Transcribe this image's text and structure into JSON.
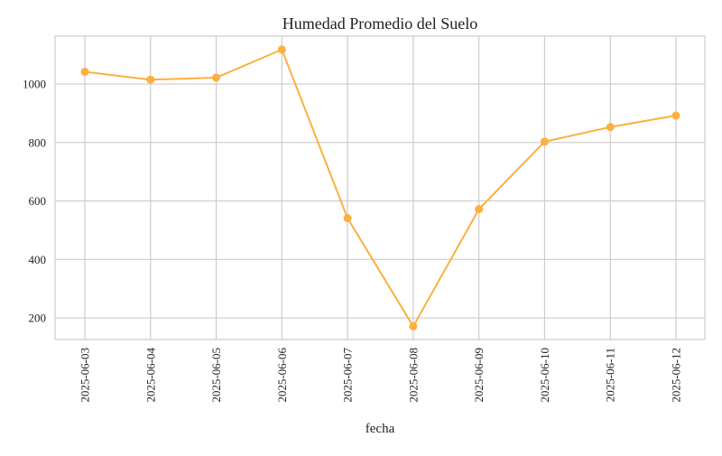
{
  "chart_data": {
    "type": "line",
    "title": "Humedad Promedio del Suelo",
    "xlabel": "fecha",
    "ylabel": "",
    "x": [
      "2025-06-03",
      "2025-06-04",
      "2025-06-05",
      "2025-06-06",
      "2025-06-07",
      "2025-06-08",
      "2025-06-09",
      "2025-06-10",
      "2025-06-11",
      "2025-06-12"
    ],
    "series": [
      {
        "name": "",
        "values": [
          1042,
          1015,
          1022,
          1118,
          541,
          171,
          572,
          803,
          853,
          892
        ]
      }
    ],
    "ylim": [
      126,
      1164
    ],
    "yticks": [
      200,
      400,
      600,
      800,
      1000
    ],
    "grid": true,
    "legend": "none",
    "line_color": "#fbb040",
    "marker": "circle"
  }
}
